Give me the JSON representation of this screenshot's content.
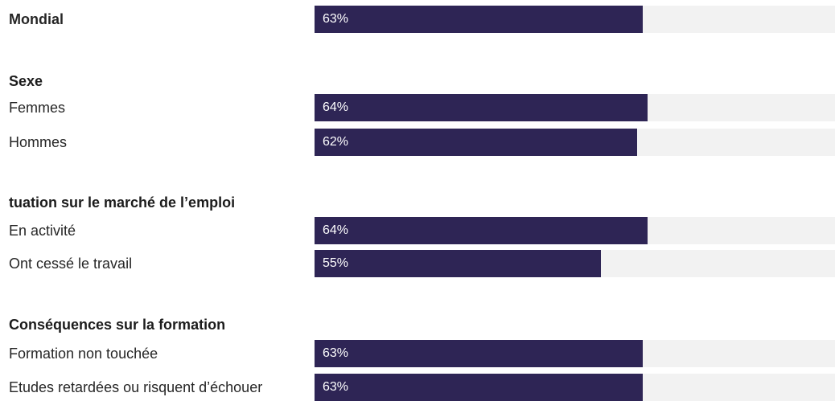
{
  "chart_data": {
    "type": "bar",
    "orientation": "horizontal",
    "xlim": [
      0,
      100
    ],
    "colors": {
      "bar": "#2e2555",
      "track": "#f2f2f2",
      "value_text": "#ffffff"
    },
    "rows": [
      {
        "kind": "bar",
        "label": "Mondial",
        "value": 63,
        "value_label": "63%",
        "bold": true
      },
      {
        "kind": "heading",
        "label": "Sexe"
      },
      {
        "kind": "bar",
        "label": "Femmes",
        "value": 64,
        "value_label": "64%"
      },
      {
        "kind": "bar",
        "label": "Hommes",
        "value": 62,
        "value_label": "62%"
      },
      {
        "kind": "heading",
        "label": "tuation sur le marché de l’emploi"
      },
      {
        "kind": "bar",
        "label": "En activité",
        "value": 64,
        "value_label": "64%"
      },
      {
        "kind": "bar",
        "label": "Ont cessé le travail",
        "value": 55,
        "value_label": "55%"
      },
      {
        "kind": "heading",
        "label": "Conséquences sur la formation"
      },
      {
        "kind": "bar",
        "label": "Formation non touchée",
        "value": 63,
        "value_label": "63%"
      },
      {
        "kind": "bar",
        "label": "Etudes retardées ou risquent d’échouer",
        "value": 63,
        "value_label": "63%"
      }
    ]
  }
}
